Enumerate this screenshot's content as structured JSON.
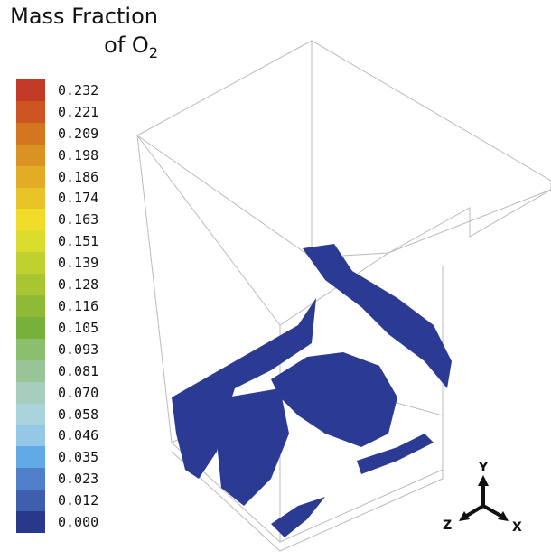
{
  "legend": {
    "title_line1": "Mass Fraction",
    "title_line2": "of O",
    "title_subscript": "2",
    "labels": [
      "0.232",
      "0.221",
      "0.209",
      "0.198",
      "0.186",
      "0.174",
      "0.163",
      "0.151",
      "0.139",
      "0.128",
      "0.116",
      "0.105",
      "0.093",
      "0.081",
      "0.070",
      "0.058",
      "0.046",
      "0.035",
      "0.023",
      "0.012",
      "0.000"
    ],
    "colors": [
      "#c23a26",
      "#cc5522",
      "#d4761f",
      "#da9222",
      "#e2ad24",
      "#e9c428",
      "#f1dc2a",
      "#dbdd2c",
      "#bfd12e",
      "#a7c632",
      "#8fba36",
      "#78b03c",
      "#8cbf6d",
      "#98c497",
      "#a7cdbf",
      "#abd3dc",
      "#94c8e6",
      "#62aae6",
      "#5080cc",
      "#3e5eae",
      "#2a388c"
    ]
  },
  "axes": {
    "y": "Y",
    "z": "Z",
    "x": "X"
  }
}
